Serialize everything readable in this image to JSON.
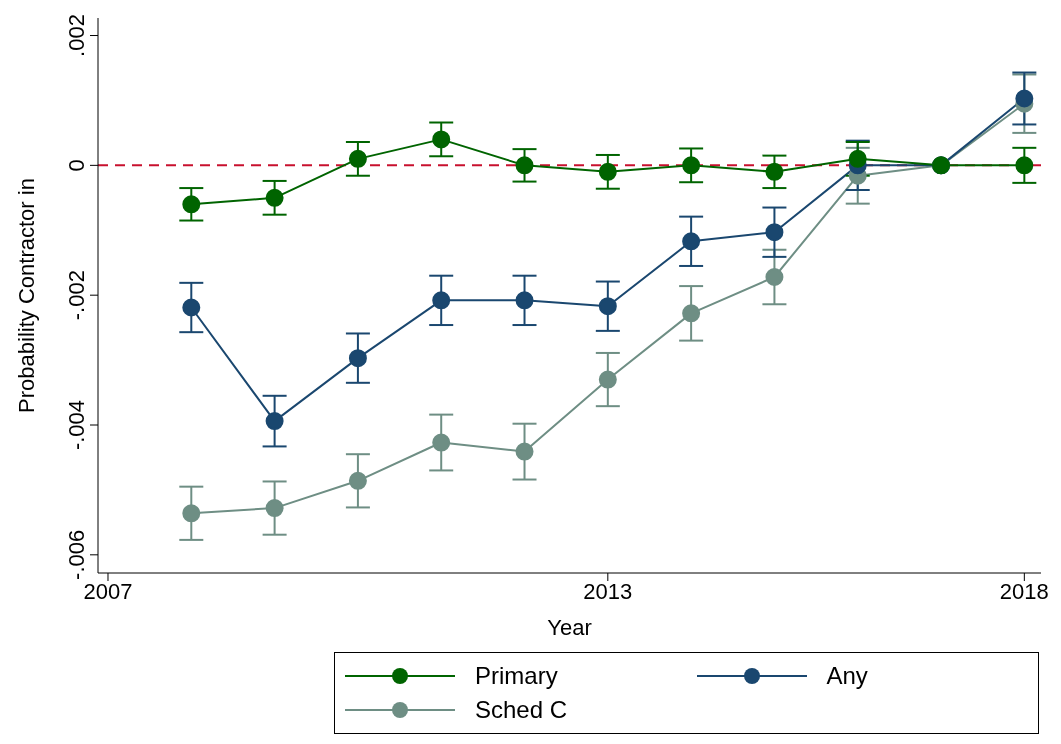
{
  "chart_data": {
    "type": "line",
    "xlabel": "Year",
    "ylabel": "Probability Contractor in",
    "x": [
      2008,
      2009,
      2010,
      2011,
      2012,
      2013,
      2014,
      2015,
      2016,
      2017,
      2018
    ],
    "series": [
      {
        "name": "Primary",
        "color": "#006400",
        "values": [
          -0.0006,
          -0.0005,
          0.0001,
          0.0004,
          0,
          -0.0001,
          0,
          -0.0001,
          0.0001,
          0,
          0
        ],
        "errors": [
          0.00025,
          0.00026,
          0.00026,
          0.00026,
          0.00025,
          0.00026,
          0.00026,
          0.00025,
          0.00026,
          null,
          0.00027
        ]
      },
      {
        "name": "Any",
        "color": "#1a476f",
        "values": [
          -0.00219,
          -0.00394,
          -0.00297,
          -0.00208,
          -0.00208,
          -0.00217,
          -0.00117,
          -0.00103,
          0,
          0,
          0.00103
        ],
        "errors": [
          0.00038,
          0.00039,
          0.00038,
          0.00038,
          0.00038,
          0.00038,
          0.00038,
          0.00038,
          0.00038,
          null,
          0.0004
        ]
      },
      {
        "name": "Sched C",
        "color": "#6e8e84",
        "values": [
          -0.00536,
          -0.00528,
          -0.00486,
          -0.00427,
          -0.00441,
          -0.0033,
          -0.00228,
          -0.00172,
          -0.00016,
          0,
          0.00095
        ],
        "errors": [
          0.00041,
          0.00041,
          0.00041,
          0.00043,
          0.00043,
          0.00041,
          0.00042,
          0.00042,
          0.00043,
          null,
          0.00045
        ]
      }
    ],
    "xlim": [
      2006.88,
      2018.2
    ],
    "xticks": [
      2007,
      2013,
      2018
    ],
    "ylim": [
      -0.00628,
      0.00227
    ],
    "yticks": [
      {
        "value": 0.002,
        "label": ".002"
      },
      {
        "value": 0,
        "label": "0"
      },
      {
        "value": -0.002,
        "label": "-.002"
      },
      {
        "value": -0.004,
        "label": "-.004"
      },
      {
        "value": -0.006,
        "label": "-.006"
      }
    ],
    "ref_lines": [
      {
        "axis": "y",
        "value": 0,
        "label": null,
        "color": "#c8102e",
        "line_style": "dashed"
      }
    ],
    "grid": false,
    "legend": "bottom",
    "marker": "circle",
    "line_style": "solid"
  }
}
